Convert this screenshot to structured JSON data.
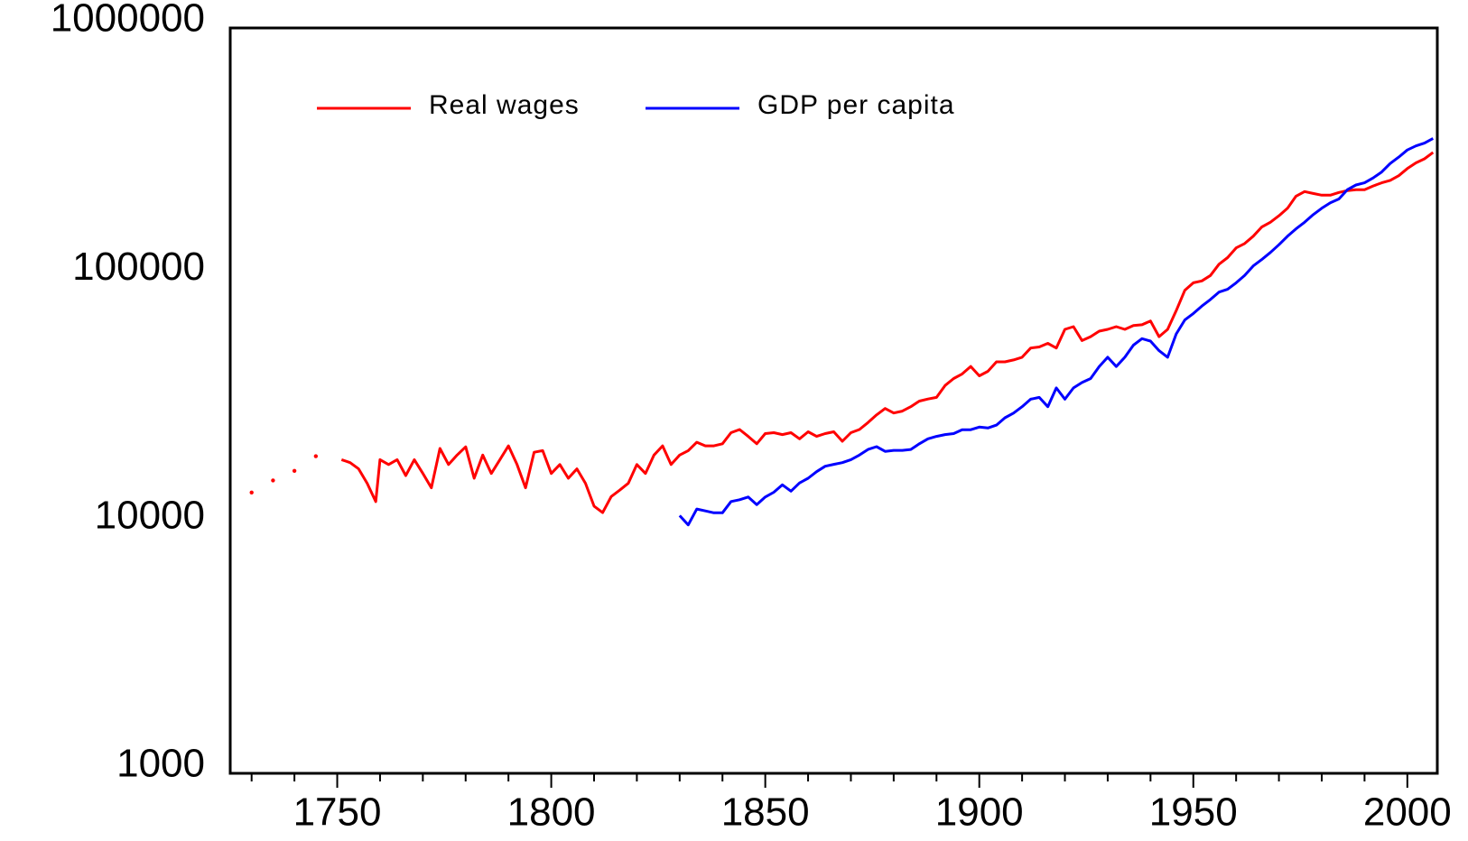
{
  "chart_data": {
    "type": "line",
    "log_y": true,
    "legend": "top",
    "ylim": [
      1000,
      1000000
    ],
    "yticks": [
      1000,
      10000,
      100000,
      1000000
    ],
    "xlim": [
      1725,
      2007
    ],
    "xticks": [
      1750,
      1800,
      1850,
      1900,
      1950,
      2000
    ],
    "xminorticks": [
      1730,
      1740,
      1760,
      1770,
      1780,
      1790,
      1810,
      1820,
      1830,
      1840,
      1860,
      1870,
      1880,
      1890,
      1910,
      1920,
      1930,
      1940,
      1960,
      1970,
      1980,
      1990
    ],
    "x": [
      1730,
      1732,
      1735,
      1737,
      1740,
      1742,
      1745,
      1748,
      1751,
      1753,
      1755,
      1757,
      1759,
      1760,
      1762,
      1764,
      1766,
      1768,
      1770,
      1772,
      1774,
      1776,
      1778,
      1780,
      1782,
      1784,
      1786,
      1788,
      1790,
      1792,
      1794,
      1796,
      1798,
      1800,
      1802,
      1804,
      1806,
      1808,
      1810,
      1812,
      1814,
      1816,
      1818,
      1820,
      1822,
      1824,
      1826,
      1828,
      1830,
      1832,
      1834,
      1836,
      1838,
      1840,
      1842,
      1844,
      1846,
      1848,
      1850,
      1852,
      1854,
      1856,
      1858,
      1860,
      1862,
      1864,
      1866,
      1868,
      1870,
      1872,
      1874,
      1876,
      1878,
      1880,
      1882,
      1884,
      1886,
      1888,
      1890,
      1892,
      1894,
      1896,
      1898,
      1900,
      1902,
      1904,
      1906,
      1908,
      1910,
      1912,
      1914,
      1916,
      1918,
      1920,
      1922,
      1924,
      1926,
      1928,
      1930,
      1932,
      1934,
      1936,
      1938,
      1940,
      1942,
      1944,
      1946,
      1948,
      1950,
      1952,
      1954,
      1956,
      1958,
      1960,
      1962,
      1964,
      1966,
      1968,
      1970,
      1972,
      1974,
      1976,
      1978,
      1980,
      1982,
      1984,
      1986,
      1988,
      1990,
      1992,
      1994,
      1996,
      1998,
      2000,
      2002,
      2004,
      2006
    ],
    "series": [
      {
        "name": "Real wages",
        "color": "#ff0000",
        "values": [
          13500,
          null,
          15100,
          null,
          16500,
          null,
          18900,
          null,
          18300,
          17800,
          16800,
          14700,
          12400,
          18300,
          17500,
          18300,
          15800,
          18300,
          16100,
          14100,
          20300,
          17500,
          19100,
          20600,
          15400,
          19100,
          16100,
          18300,
          20800,
          17500,
          14100,
          19600,
          19900,
          16100,
          17500,
          15400,
          16800,
          14700,
          11900,
          11200,
          13000,
          13800,
          14700,
          17500,
          16100,
          19100,
          20800,
          17500,
          19100,
          19900,
          21500,
          20800,
          20800,
          21200,
          23500,
          24200,
          22700,
          21200,
          23300,
          23500,
          23100,
          23500,
          22200,
          23700,
          22700,
          23300,
          23700,
          21700,
          23500,
          24200,
          25800,
          27700,
          29400,
          28200,
          28700,
          29900,
          31500,
          32100,
          32600,
          36400,
          38800,
          40500,
          43400,
          39800,
          41500,
          45300,
          45300,
          46100,
          47300,
          51500,
          52000,
          53800,
          51500,
          61200,
          62800,
          55200,
          57200,
          60200,
          61200,
          62800,
          61200,
          63400,
          63900,
          66200,
          57200,
          61200,
          72800,
          87900,
          94300,
          95900,
          100900,
          112000,
          119000,
          130300,
          135600,
          145100,
          158200,
          165200,
          175500,
          188000,
          210300,
          219600,
          215800,
          212300,
          212300,
          217700,
          221600,
          223500,
          223500,
          231300,
          238100,
          243600,
          254300,
          271700,
          286500,
          297300,
          315600
        ]
      },
      {
        "name": "GDP per capita",
        "color": "#0000ff",
        "values": [
          null,
          null,
          null,
          null,
          null,
          null,
          null,
          null,
          null,
          null,
          null,
          null,
          null,
          null,
          null,
          null,
          null,
          null,
          null,
          null,
          null,
          null,
          null,
          null,
          null,
          null,
          null,
          null,
          null,
          null,
          null,
          null,
          null,
          null,
          null,
          null,
          null,
          null,
          null,
          null,
          null,
          null,
          null,
          null,
          null,
          null,
          null,
          null,
          10900,
          10000,
          11580,
          11380,
          11180,
          11180,
          12410,
          12620,
          12950,
          12070,
          12950,
          13530,
          14490,
          13670,
          14750,
          15400,
          16370,
          17220,
          17520,
          17800,
          18300,
          19100,
          20110,
          20650,
          19770,
          19940,
          19940,
          20110,
          21200,
          22200,
          22700,
          23100,
          23300,
          24150,
          24150,
          24750,
          24540,
          25210,
          26980,
          28170,
          29900,
          32060,
          32600,
          29900,
          35570,
          32060,
          35570,
          37400,
          38800,
          43370,
          47270,
          43370,
          47270,
          52900,
          56180,
          54900,
          50260,
          47270,
          58650,
          66760,
          70950,
          75990,
          80740,
          86480,
          88730,
          94280,
          100900,
          110200,
          117000,
          124800,
          134200,
          145100,
          155400,
          165200,
          177200,
          188000,
          197900,
          205000,
          223500,
          233300,
          238100,
          249000,
          263300,
          284700,
          302300,
          322700,
          335300,
          344000,
          359200
        ]
      }
    ]
  }
}
